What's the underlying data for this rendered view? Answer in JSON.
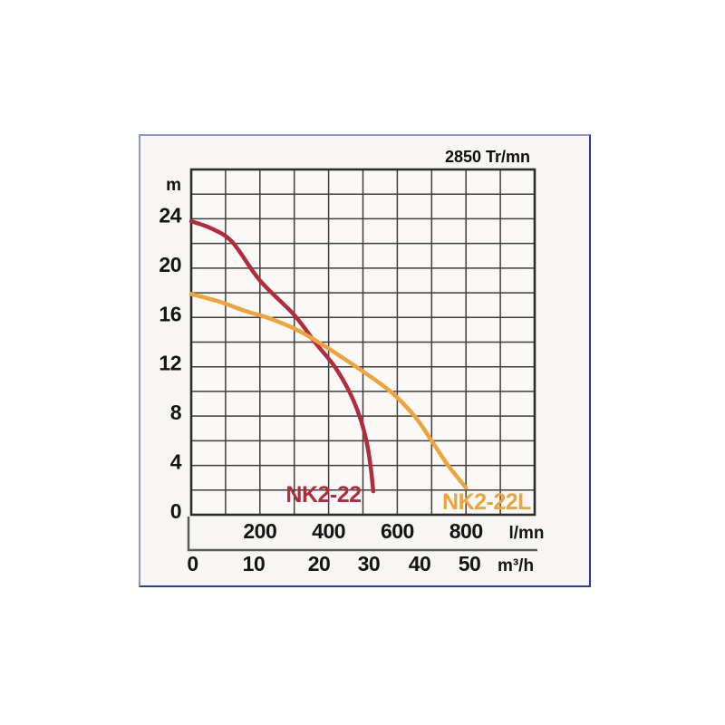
{
  "panel": {
    "background": "#f7f6f3",
    "border_blue_light": "#8797c9",
    "border_blue_dark": "#2c3e97"
  },
  "chart_data": {
    "type": "line",
    "title": "2850 Tr/mn",
    "grid": true,
    "legend_position": "labels-on-curves",
    "x_axis": {
      "unit": "l/mn",
      "min": 0,
      "max": 1000,
      "gridline_step": 100,
      "tick_labels": [
        200,
        400,
        600,
        800
      ]
    },
    "x_axis_secondary": {
      "unit": "m³/h",
      "tick_labels": [
        0,
        10,
        20,
        30,
        40,
        50
      ]
    },
    "y_axis": {
      "unit": "m",
      "min": 0,
      "max": 28,
      "gridline_step": 2,
      "tick_labels": [
        24,
        20,
        16,
        12,
        8,
        4,
        0
      ]
    },
    "series": [
      {
        "name": "NK2-22",
        "color": "#b22c3f",
        "points": [
          [
            0,
            23.8
          ],
          [
            60,
            23.2
          ],
          [
            120,
            22.1
          ],
          [
            200,
            19.0
          ],
          [
            300,
            16.2
          ],
          [
            360,
            14.0
          ],
          [
            418,
            12.0
          ],
          [
            460,
            10.0
          ],
          [
            490,
            8.0
          ],
          [
            510,
            6.0
          ],
          [
            522,
            4.0
          ],
          [
            530,
            1.9
          ]
        ]
      },
      {
        "name": "NK2-22L",
        "color": "#eda43c",
        "points": [
          [
            0,
            17.9
          ],
          [
            80,
            17.3
          ],
          [
            160,
            16.5
          ],
          [
            220,
            16.0
          ],
          [
            300,
            15.1
          ],
          [
            370,
            14.0
          ],
          [
            480,
            12.0
          ],
          [
            580,
            10.0
          ],
          [
            650,
            8.0
          ],
          [
            700,
            6.0
          ],
          [
            748,
            4.0
          ],
          [
            800,
            2.2
          ]
        ]
      }
    ],
    "colors": {
      "grid": "#413f3d",
      "text": "#141414"
    }
  }
}
